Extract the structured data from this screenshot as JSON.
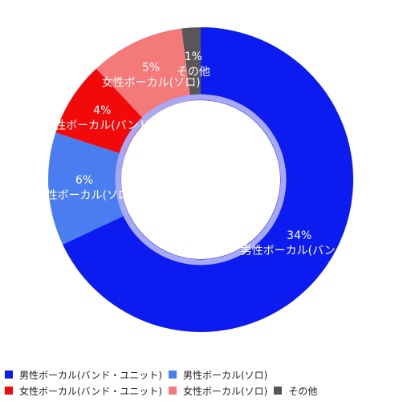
{
  "chart_data": {
    "type": "donut",
    "slices": [
      {
        "name": "男性ボーカル(バンド・ユニット)",
        "value": 34,
        "label": "34%",
        "color": "#0c1bf0",
        "slice_text": "男性ボーカル(バンド・"
      },
      {
        "name": "男性ボーカル(ソロ)",
        "value": 6,
        "label": "6%",
        "color": "#4a7df0",
        "slice_text": "男性ボーカル(ソロ)"
      },
      {
        "name": "女性ボーカル(バンド・ユニット)",
        "value": 4,
        "label": "4%",
        "color": "#f20a0a",
        "slice_text": "女性ボーカル(バンド・"
      },
      {
        "name": "女性ボーカル(ソロ)",
        "value": 5,
        "label": "5%",
        "color": "#f47a7a",
        "slice_text": "女性ボーカル(ソロ)"
      },
      {
        "name": "その他",
        "value": 1,
        "label": "1%",
        "color": "#5a5558",
        "slice_text": "その他"
      }
    ],
    "legend_position": "bottom"
  }
}
